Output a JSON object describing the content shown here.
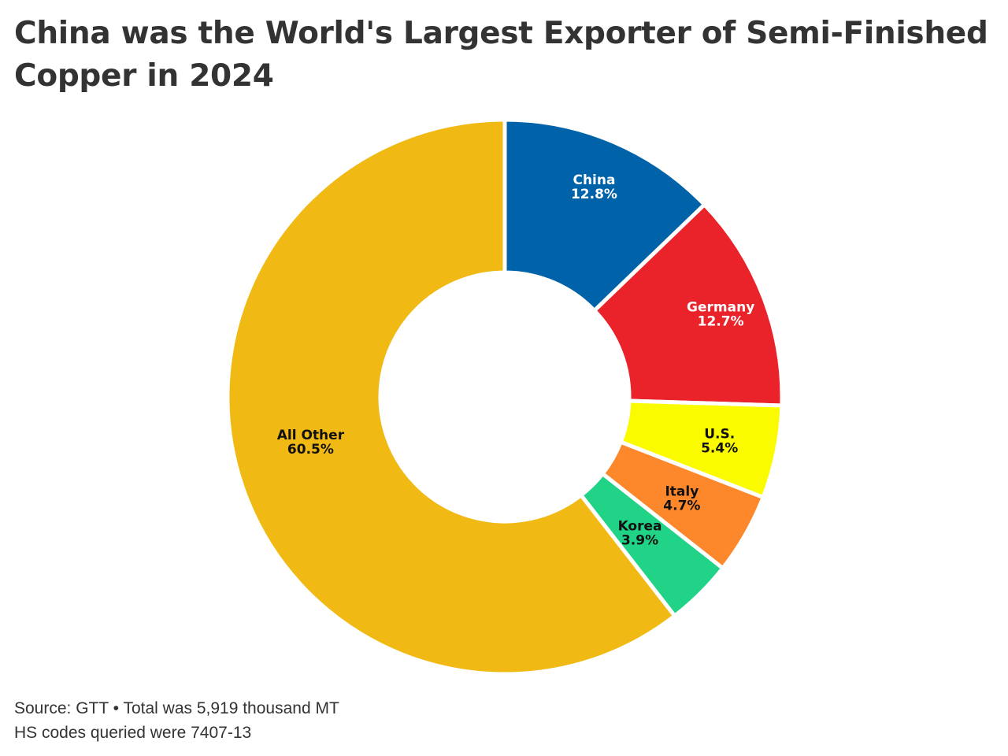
{
  "chart_data": {
    "type": "pie",
    "title": "China was the World's Largest Exporter of Semi-Finished Copper in 2024",
    "unit": "%",
    "categories": [
      "China",
      "Germany",
      "U.S.",
      "Italy",
      "Korea",
      "All Other"
    ],
    "values": [
      12.8,
      12.7,
      5.4,
      4.7,
      3.9,
      60.5
    ],
    "labels": [
      "12.8%",
      "12.7%",
      "5.4%",
      "4.7%",
      "3.9%",
      "60.5%"
    ],
    "colors": [
      "#0062A8",
      "#EA222A",
      "#FBFB00",
      "#FD872B",
      "#20D387",
      "#F0B913"
    ],
    "label_colors": [
      "#ffffff",
      "#ffffff",
      "#111111",
      "#111111",
      "#111111",
      "#111111"
    ],
    "donut": true,
    "start_angle_deg": 0,
    "direction": "clockwise"
  },
  "footer": {
    "source": "Source: GTT • Total was 5,919 thousand MT",
    "note": "HS codes queried were 7407-13"
  }
}
